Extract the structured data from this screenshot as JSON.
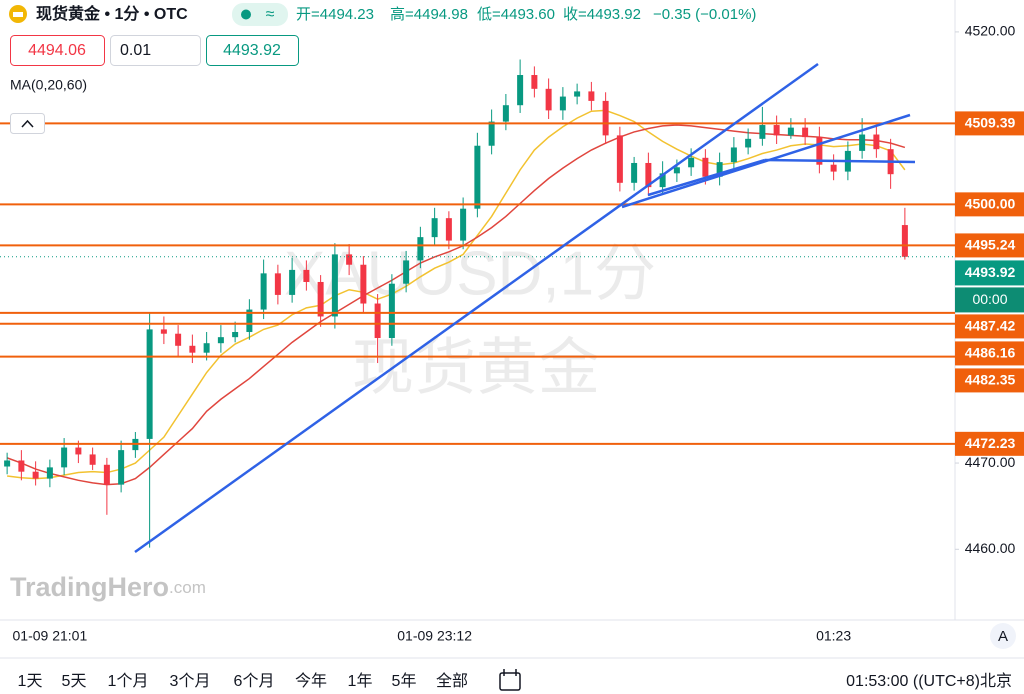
{
  "header": {
    "symbol": "现货黄金 • 1分 • OTC",
    "icon": "≈",
    "quote": [
      "开=4494.23",
      "高=4494.98",
      "低=4493.60",
      "收=4493.92"
    ],
    "change": "−0.35 (−0.01%)",
    "inputs": [
      "4494.06",
      "0.01",
      "4493.92"
    ],
    "indicator": "MA(0,20,60)"
  },
  "watermark": [
    "XAUUSD,1分",
    "现货黄金"
  ],
  "logo": [
    "TradingHero",
    ".com"
  ],
  "footer": {
    "ranges": [
      "1天",
      "5天",
      "1个月",
      "3个月",
      "6个月",
      "今年",
      "1年",
      "5年",
      "全部"
    ],
    "clock": "01:53:00 ((UTC+8)北京",
    "scale_button": "A"
  },
  "chart_data": {
    "type": "candlestick",
    "categories": [
      null,
      null,
      null,
      "01-09 21:01",
      null,
      null,
      null,
      null,
      null,
      null,
      null,
      null,
      null,
      null,
      null,
      null,
      null,
      null,
      null,
      null,
      null,
      null,
      null,
      null,
      null,
      null,
      null,
      null,
      null,
      null,
      "01-09 23:12",
      null,
      null,
      null,
      null,
      null,
      null,
      null,
      null,
      null,
      null,
      null,
      null,
      null,
      null,
      null,
      null,
      null,
      null,
      null,
      null,
      null,
      null,
      null,
      null,
      null,
      null,
      null,
      "01:23",
      null,
      null,
      null,
      null,
      null
    ],
    "open": [
      4469.6,
      4470.3,
      4469.0,
      4468.2,
      4469.5,
      4471.8,
      4471.0,
      4469.8,
      4467.5,
      4471.5,
      4472.8,
      4485.5,
      4485.0,
      4483.6,
      4482.8,
      4483.9,
      4484.6,
      4485.2,
      4487.8,
      4492.0,
      4489.5,
      4492.4,
      4491.0,
      4487.0,
      4494.2,
      4493.0,
      4488.5,
      4484.5,
      4490.8,
      4493.5,
      4496.2,
      4498.4,
      4495.8,
      4499.5,
      4506.8,
      4509.6,
      4511.5,
      4515.0,
      4513.4,
      4510.9,
      4512.5,
      4513.1,
      4512.0,
      4508.0,
      4502.5,
      4504.8,
      4502.0,
      4503.6,
      4504.3,
      4505.4,
      4503.2,
      4504.9,
      4506.6,
      4507.6,
      4509.2,
      4508.0,
      4508.9,
      4507.8,
      4504.6,
      4503.8,
      4506.2,
      4508.1,
      4506.4,
      4497.6
    ],
    "high": [
      4471.2,
      4471.5,
      4470.2,
      4470.4,
      4472.9,
      4472.6,
      4471.8,
      4470.6,
      4472.6,
      4473.6,
      4487.5,
      4487.0,
      4486.0,
      4484.9,
      4485.2,
      4486.0,
      4486.4,
      4489.0,
      4493.6,
      4493.0,
      4493.8,
      4493.5,
      4491.8,
      4495.5,
      4495.4,
      4494.0,
      4489.6,
      4491.9,
      4494.6,
      4497.4,
      4499.6,
      4499.2,
      4500.8,
      4508.3,
      4511.0,
      4512.8,
      4516.8,
      4516.0,
      4514.6,
      4513.6,
      4514.0,
      4514.2,
      4513.0,
      4509.0,
      4505.5,
      4506.0,
      4505.0,
      4505.2,
      4506.5,
      4506.4,
      4506.0,
      4507.8,
      4508.8,
      4511.3,
      4510.3,
      4510.0,
      4510.0,
      4509.0,
      4505.8,
      4507.3,
      4510.0,
      4509.2,
      4507.6,
      4499.6
    ],
    "low": [
      4468.7,
      4468.0,
      4467.4,
      4467.2,
      4468.6,
      4470.0,
      4469.2,
      4464.0,
      4466.6,
      4470.6,
      4460.2,
      4483.8,
      4482.4,
      4481.6,
      4481.9,
      4482.8,
      4484.0,
      4484.3,
      4486.7,
      4488.4,
      4488.6,
      4490.0,
      4485.8,
      4485.6,
      4491.8,
      4487.4,
      4481.6,
      4483.6,
      4489.8,
      4492.6,
      4495.2,
      4494.8,
      4494.8,
      4498.5,
      4505.8,
      4508.6,
      4510.6,
      4512.4,
      4509.9,
      4509.8,
      4511.6,
      4510.9,
      4507.0,
      4501.5,
      4501.6,
      4501.0,
      4501.2,
      4502.6,
      4503.3,
      4502.3,
      4502.2,
      4504.0,
      4505.8,
      4506.8,
      4507.0,
      4507.6,
      4506.9,
      4503.6,
      4502.8,
      4502.8,
      4505.3,
      4505.4,
      4501.8,
      4493.6
    ],
    "close": [
      4470.3,
      4469.0,
      4468.2,
      4469.5,
      4471.8,
      4471.0,
      4469.8,
      4467.5,
      4471.5,
      4472.8,
      4485.5,
      4485.0,
      4483.6,
      4482.8,
      4483.9,
      4484.6,
      4485.2,
      4487.8,
      4492.0,
      4489.5,
      4492.4,
      4491.0,
      4487.0,
      4494.2,
      4493.0,
      4488.5,
      4484.5,
      4490.8,
      4493.5,
      4496.2,
      4498.4,
      4495.8,
      4499.5,
      4506.8,
      4509.6,
      4511.5,
      4515.0,
      4513.4,
      4510.9,
      4512.5,
      4513.1,
      4512.0,
      4508.0,
      4502.5,
      4504.8,
      4502.0,
      4503.6,
      4504.3,
      4505.4,
      4503.2,
      4504.9,
      4506.6,
      4507.6,
      4509.2,
      4508.0,
      4508.9,
      4507.8,
      4504.6,
      4503.8,
      4506.2,
      4508.1,
      4506.4,
      4503.5,
      4493.92
    ],
    "up_color": "#089981",
    "down_color": "#f23645",
    "ma_lines": [
      {
        "color": "#f2c230",
        "values": [
          4468.5,
          4468.3,
          4468.2,
          4468.3,
          4468.6,
          4468.9,
          4469.0,
          4468.9,
          4469.3,
          4470.0,
          4471.5,
          4473.0,
          4475.5,
          4478.0,
          4480.5,
          4482.5,
          4483.8,
          4484.6,
          4485.5,
          4486.0,
          4487.2,
          4488.0,
          4488.3,
          4489.4,
          4490.1,
          4489.8,
          4489.0,
          4489.6,
          4490.5,
          4491.6,
          4492.6,
          4493.3,
          4494.2,
          4496.4,
          4498.6,
          4501.3,
          4504.0,
          4506.3,
          4507.8,
          4509.0,
          4510.0,
          4510.8,
          4510.9,
          4510.3,
          4509.6,
          4508.4,
          4507.3,
          4506.4,
          4505.6,
          4504.9,
          4504.6,
          4504.8,
          4505.3,
          4505.9,
          4506.3,
          4506.8,
          4507.0,
          4506.9,
          4506.7,
          4506.8,
          4507.0,
          4506.8,
          4506.2,
          4504.0
        ]
      },
      {
        "color": "#e0463e",
        "values": [
          4470.6,
          4470.0,
          4469.3,
          4468.8,
          4468.4,
          4468.0,
          4467.7,
          4467.5,
          4467.6,
          4468.2,
          4469.5,
          4471.0,
          4472.5,
          4474.0,
          4476.0,
          4477.4,
          4478.6,
          4479.8,
          4481.2,
          4482.6,
          4484.0,
          4485.2,
          4486.4,
          4487.4,
          4488.4,
          4489.4,
          4490.3,
          4491.2,
          4492.2,
          4493.2,
          4493.9,
          4494.5,
          4495.2,
          4496.2,
          4497.3,
          4498.6,
          4500.1,
          4501.6,
          4503.0,
          4504.2,
          4505.3,
          4506.3,
          4507.1,
          4507.8,
          4508.4,
          4508.8,
          4509.1,
          4509.2,
          4509.1,
          4508.9,
          4508.7,
          4508.5,
          4508.3,
          4508.2,
          4508.1,
          4508.0,
          4507.9,
          4507.8,
          4507.6,
          4507.5,
          4507.5,
          4507.4,
          4507.1,
          4506.6
        ]
      }
    ],
    "ylim": [
      4451.8,
      4523.7
    ],
    "yticks": [
      {
        "value": 4520,
        "label": "4520.00"
      },
      {
        "value": 4470,
        "label": "4470.00"
      },
      {
        "value": 4460,
        "label": "4460.00"
      }
    ],
    "level_color": "#f0600c",
    "levels": [
      {
        "value": 4509.39,
        "label": "4509.39"
      },
      {
        "value": 4500,
        "label": "4500.00"
      },
      {
        "value": 4495.24,
        "label": "4495.24"
      },
      {
        "value": 4487.42,
        "label": "4487.42"
      },
      {
        "value": 4486.16,
        "label": "4486.16"
      },
      {
        "value": 4482.35,
        "label": "4482.35"
      },
      {
        "value": 4472.23,
        "label": "4472.23"
      }
    ],
    "last_price": {
      "value": 4493.92,
      "label": "4493.92"
    },
    "countdown": "00:00"
  }
}
